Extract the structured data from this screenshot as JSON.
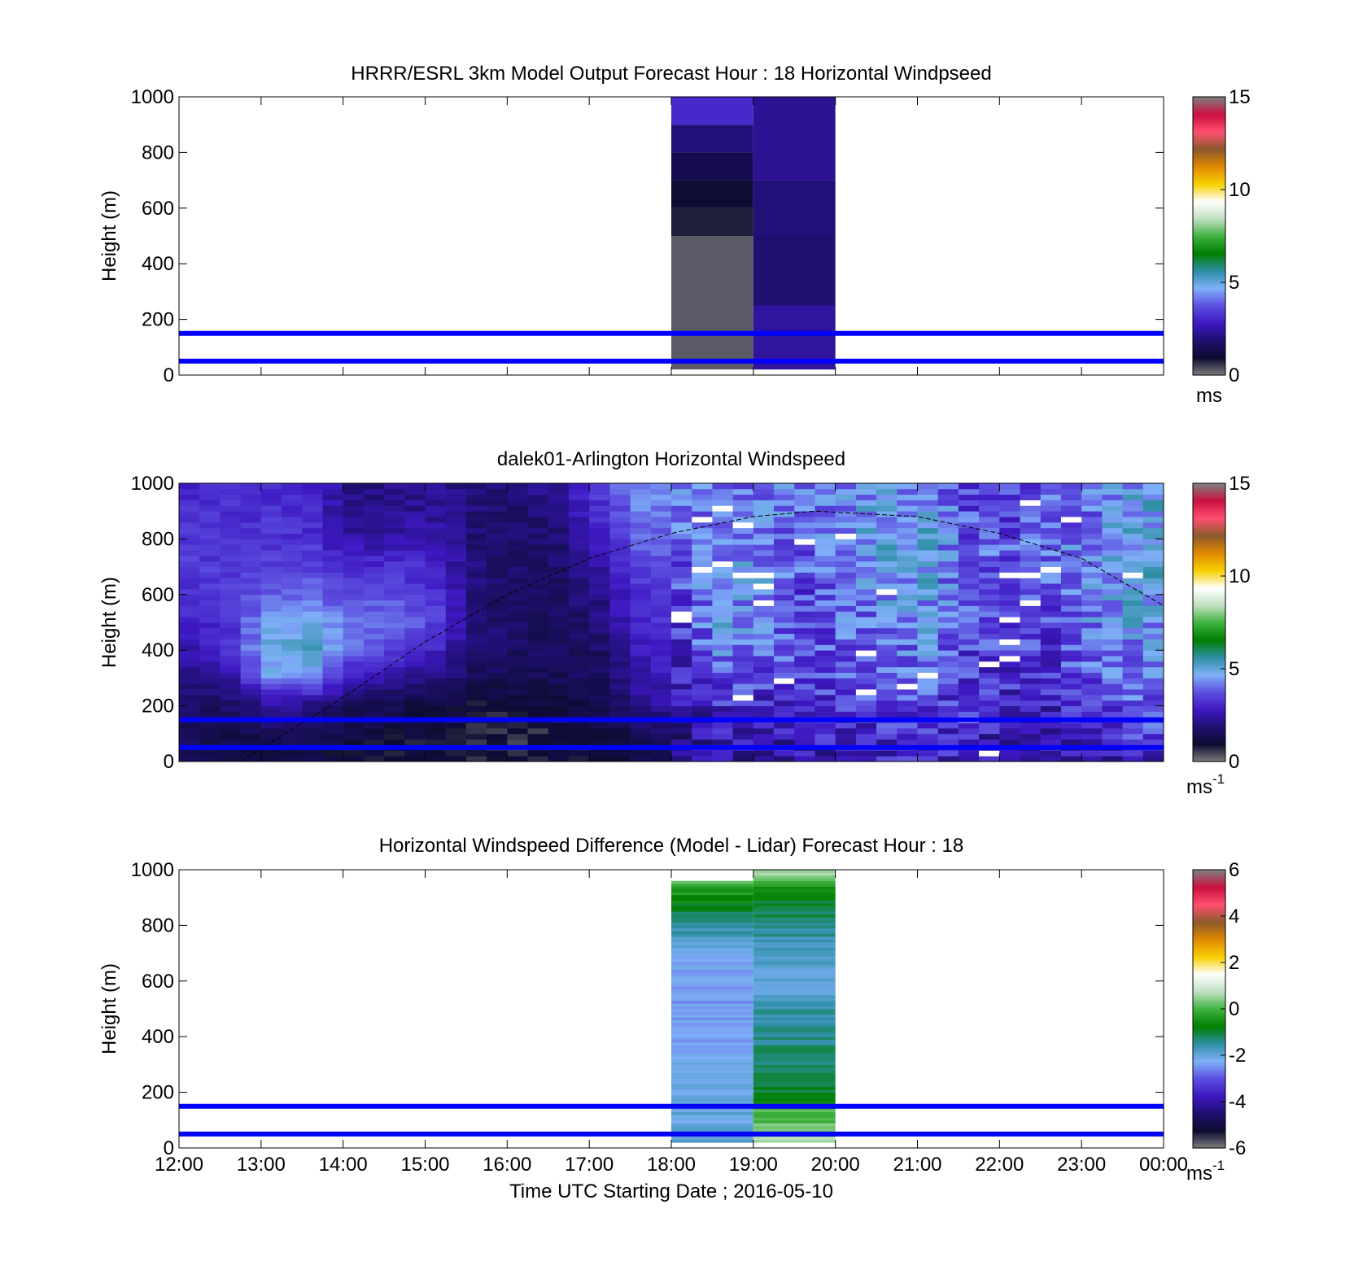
{
  "figure": {
    "xlabel": "Time UTC  Starting Date ; 2016-05-10",
    "time_ticks": [
      "12:00",
      "13:00",
      "14:00",
      "15:00",
      "16:00",
      "17:00",
      "18:00",
      "19:00",
      "20:00",
      "21:00",
      "22:00",
      "23:00",
      "00:00"
    ]
  },
  "colors": {
    "guide_lines": "#0000ff",
    "ws_colormap": [
      "#7f7f7f",
      "#0c0c30",
      "#1e0f6e",
      "#3e18c2",
      "#5c4fe0",
      "#7fb0f8",
      "#2e8fa6",
      "#007f00",
      "#3fb23f",
      "#c0e0c0",
      "#ffffff",
      "#f7d000",
      "#e08800",
      "#8b5a2b",
      "#ff5070",
      "#cc1040",
      "#7f7f7f"
    ],
    "diff_colormap": [
      "#7f7f7f",
      "#0c0c30",
      "#1e0f6e",
      "#3e18c2",
      "#5c4fe0",
      "#7fb0f8",
      "#2e8fa6",
      "#007f00",
      "#3fb23f",
      "#c0e0c0",
      "#ffffff",
      "#f7d000",
      "#e08800",
      "#8b5a2b",
      "#ff5070",
      "#cc1040",
      "#7f7f7f"
    ]
  },
  "chart_data": [
    {
      "type": "heatmap",
      "title": "HRRR/ESRL 3km Model Output   Forecast Hour : 18 Horizontal Windpseed",
      "ylabel": "Height (m)",
      "xlabel": "",
      "xlim": [
        "12:00",
        "00:00"
      ],
      "ylim": [
        0,
        1000
      ],
      "yticks": [
        "0",
        "200",
        "400",
        "600",
        "800",
        "1000"
      ],
      "colorbar": {
        "range": [
          0,
          15
        ],
        "ticks": [
          "0",
          "5",
          "10",
          "15"
        ],
        "unit": "ms",
        "unit_sup": ""
      },
      "reference_lines_m": [
        50,
        150
      ],
      "columns": [
        {
          "x_start": "18:00",
          "x_end": "19:00",
          "levels": [
            {
              "z0": 20,
              "z1": 50,
              "value": 0.3
            },
            {
              "z0": 50,
              "z1": 500,
              "value": 0.3
            },
            {
              "z0": 500,
              "z1": 600,
              "value": 0.8
            },
            {
              "z0": 600,
              "z1": 700,
              "value": 1.0
            },
            {
              "z0": 700,
              "z1": 800,
              "value": 1.4
            },
            {
              "z0": 800,
              "z1": 900,
              "value": 2.0
            },
            {
              "z0": 900,
              "z1": 1000,
              "value": 3.1
            }
          ]
        },
        {
          "x_start": "19:00",
          "x_end": "20:00",
          "levels": [
            {
              "z0": 20,
              "z1": 250,
              "value": 2.4
            },
            {
              "z0": 250,
              "z1": 500,
              "value": 1.9
            },
            {
              "z0": 500,
              "z1": 700,
              "value": 2.0
            },
            {
              "z0": 700,
              "z1": 1000,
              "value": 2.3
            }
          ]
        }
      ]
    },
    {
      "type": "heatmap",
      "title": "dalek01-Arlington  Horizontal Windspeed",
      "ylabel": "Height (m)",
      "xlabel": "",
      "xlim": [
        "12:00",
        "00:00"
      ],
      "ylim": [
        0,
        1000
      ],
      "yticks": [
        "0",
        "200",
        "400",
        "600",
        "800",
        "1000"
      ],
      "colorbar": {
        "range": [
          0,
          15
        ],
        "ticks": [
          "0",
          "5",
          "10",
          "15"
        ],
        "unit": "ms",
        "unit_sup": "-1"
      },
      "reference_lines_m": [
        50,
        150
      ],
      "time_bin_minutes": 15,
      "height_bin_m": 20,
      "profile_rows_m": [
        0,
        100,
        200,
        300,
        400,
        500,
        600,
        700,
        800,
        900,
        1000
      ],
      "profiles": [
        {
          "t": "12:00",
          "ws": [
            1.5,
            1.5,
            1.8,
            2.2,
            2.6,
            3.0,
            3.2,
            3.4,
            3.3,
            3.2,
            3.0
          ]
        },
        {
          "t": "12:30",
          "ws": [
            1.2,
            1.4,
            1.8,
            2.6,
            3.2,
            3.4,
            3.4,
            3.4,
            3.3,
            3.2,
            3.1
          ]
        },
        {
          "t": "13:00",
          "ws": [
            1.2,
            1.5,
            2.5,
            4.5,
            5.0,
            4.5,
            3.8,
            3.5,
            3.3,
            3.2,
            3.0
          ]
        },
        {
          "t": "13:30",
          "ws": [
            1.2,
            1.5,
            2.3,
            4.6,
            5.2,
            4.7,
            4.0,
            3.5,
            3.2,
            3.0,
            2.9
          ]
        },
        {
          "t": "14:00",
          "ws": [
            1.0,
            1.2,
            1.6,
            3.0,
            4.0,
            4.2,
            3.5,
            3.0,
            2.4,
            2.2,
            2.1
          ]
        },
        {
          "t": "14:30",
          "ws": [
            1.0,
            1.1,
            1.4,
            2.5,
            3.5,
            4.2,
            3.6,
            3.2,
            2.5,
            2.2,
            2.1
          ]
        },
        {
          "t": "15:00",
          "ws": [
            0.9,
            0.9,
            1.2,
            2.0,
            3.0,
            3.5,
            3.2,
            3.0,
            2.5,
            2.3,
            2.2
          ]
        },
        {
          "t": "15:30",
          "ws": [
            0.9,
            0.8,
            1.0,
            1.6,
            2.0,
            2.0,
            2.0,
            2.0,
            1.9,
            2.0,
            2.1
          ]
        },
        {
          "t": "16:00",
          "ws": [
            0.8,
            0.7,
            1.0,
            1.6,
            1.7,
            1.7,
            1.8,
            1.8,
            1.8,
            1.8,
            1.9
          ]
        },
        {
          "t": "16:30",
          "ws": [
            0.9,
            0.9,
            1.2,
            1.5,
            1.6,
            1.6,
            1.7,
            1.8,
            1.9,
            2.2,
            2.5
          ]
        },
        {
          "t": "17:00",
          "ws": [
            1.0,
            1.1,
            1.4,
            1.6,
            1.8,
            2.0,
            2.2,
            2.5,
            3.0,
            3.2,
            3.5
          ]
        },
        {
          "t": "17:30",
          "ws": [
            1.5,
            1.6,
            2.2,
            2.5,
            2.8,
            3.0,
            3.2,
            3.6,
            4.0,
            4.2,
            4.4
          ]
        },
        {
          "t": "18:00",
          "ws": [
            1.8,
            2.0,
            2.6,
            3.0,
            3.2,
            3.5,
            3.6,
            3.8,
            4.0,
            4.2,
            4.4
          ]
        },
        {
          "t": "18:30",
          "ws": [
            2.5,
            2.6,
            3.2,
            3.8,
            4.2,
            4.5,
            4.4,
            4.3,
            4.2,
            4.0,
            4.0
          ]
        },
        {
          "t": "19:00",
          "ws": [
            2.2,
            2.6,
            3.0,
            3.6,
            4.0,
            4.5,
            4.4,
            4.5,
            4.2,
            4.0,
            3.8
          ]
        },
        {
          "t": "19:30",
          "ws": [
            2.5,
            2.8,
            3.2,
            3.6,
            3.5,
            3.4,
            3.6,
            3.8,
            4.0,
            4.2,
            4.3
          ]
        },
        {
          "t": "20:00",
          "ws": [
            2.8,
            3.0,
            3.4,
            3.6,
            3.8,
            4.0,
            4.2,
            4.4,
            4.6,
            4.5,
            4.4
          ]
        },
        {
          "t": "20:30",
          "ws": [
            3.0,
            3.2,
            3.5,
            3.8,
            4.0,
            4.2,
            4.4,
            4.6,
            4.8,
            4.6,
            4.5
          ]
        },
        {
          "t": "21:00",
          "ws": [
            3.0,
            3.2,
            3.5,
            3.8,
            4.2,
            4.5,
            4.6,
            4.8,
            4.8,
            4.6,
            4.4
          ]
        },
        {
          "t": "21:30",
          "ws": [
            2.8,
            3.0,
            3.2,
            3.4,
            3.5,
            3.6,
            3.6,
            3.8,
            3.8,
            3.6,
            3.5
          ]
        },
        {
          "t": "22:00",
          "ws": [
            2.5,
            2.8,
            3.0,
            3.2,
            3.4,
            3.6,
            3.8,
            3.8,
            3.6,
            3.4,
            3.3
          ]
        },
        {
          "t": "22:30",
          "ws": [
            2.6,
            2.8,
            3.0,
            3.2,
            3.4,
            3.6,
            3.8,
            4.0,
            4.0,
            3.8,
            3.6
          ]
        },
        {
          "t": "23:00",
          "ws": [
            2.8,
            3.0,
            3.4,
            3.8,
            4.0,
            4.2,
            4.4,
            4.4,
            4.2,
            4.0,
            4.0
          ]
        },
        {
          "t": "23:30",
          "ws": [
            3.0,
            3.4,
            3.8,
            4.0,
            4.4,
            4.6,
            4.8,
            5.0,
            4.8,
            4.8,
            4.6
          ]
        },
        {
          "t": "00:00",
          "ws": [
            3.0,
            3.4,
            3.8,
            4.0,
            4.4,
            4.6,
            4.8,
            5.0,
            4.8,
            4.8,
            4.6
          ]
        }
      ],
      "boundary_layer_curve": [
        {
          "t": "12:45",
          "z": 0
        },
        {
          "t": "14:00",
          "z": 230
        },
        {
          "t": "15:00",
          "z": 430
        },
        {
          "t": "16:00",
          "z": 600
        },
        {
          "t": "17:00",
          "z": 730
        },
        {
          "t": "18:00",
          "z": 820
        },
        {
          "t": "19:00",
          "z": 880
        },
        {
          "t": "19:45",
          "z": 900
        },
        {
          "t": "21:00",
          "z": 880
        },
        {
          "t": "22:00",
          "z": 820
        },
        {
          "t": "23:00",
          "z": 730
        },
        {
          "t": "00:00",
          "z": 560
        }
      ]
    },
    {
      "type": "heatmap",
      "title": "Horizontal Windspeed Difference (Model - Lidar) Forecast Hour : 18",
      "ylabel": "Height (m)",
      "xlabel": "Time UTC  Starting Date ; 2016-05-10",
      "xlim": [
        "12:00",
        "00:00"
      ],
      "ylim": [
        0,
        1000
      ],
      "yticks": [
        "0",
        "200",
        "400",
        "600",
        "800",
        "1000"
      ],
      "colorbar": {
        "range": [
          -6,
          6
        ],
        "ticks": [
          "-6",
          "-4",
          "-2",
          "0",
          "2",
          "4",
          "6"
        ],
        "unit": "ms",
        "unit_sup": "-1"
      },
      "reference_lines_m": [
        50,
        150
      ],
      "height_bin_m": 10,
      "columns": [
        {
          "x_start": "18:00",
          "x_end": "19:00",
          "profile_rows_m": [
            20,
            100,
            200,
            300,
            400,
            500,
            600,
            700,
            800,
            850,
            900,
            950,
            960
          ],
          "diff": [
            -2.0,
            -2.0,
            -2.1,
            -2.2,
            -2.3,
            -2.4,
            -2.4,
            -2.2,
            -1.4,
            -1.0,
            -0.6,
            0.1,
            0.1
          ]
        },
        {
          "x_start": "19:00",
          "x_end": "20:00",
          "profile_rows_m": [
            20,
            50,
            80,
            100,
            130,
            150,
            200,
            300,
            400,
            500,
            600,
            700,
            800,
            900,
            950,
            980,
            1000
          ],
          "diff": [
            0.8,
            0.5,
            0.2,
            0.1,
            0.0,
            -0.3,
            -1.0,
            -1.2,
            -1.4,
            -1.6,
            -2.0,
            -1.8,
            -1.3,
            -0.8,
            -0.2,
            0.6,
            0.8
          ]
        }
      ]
    }
  ]
}
